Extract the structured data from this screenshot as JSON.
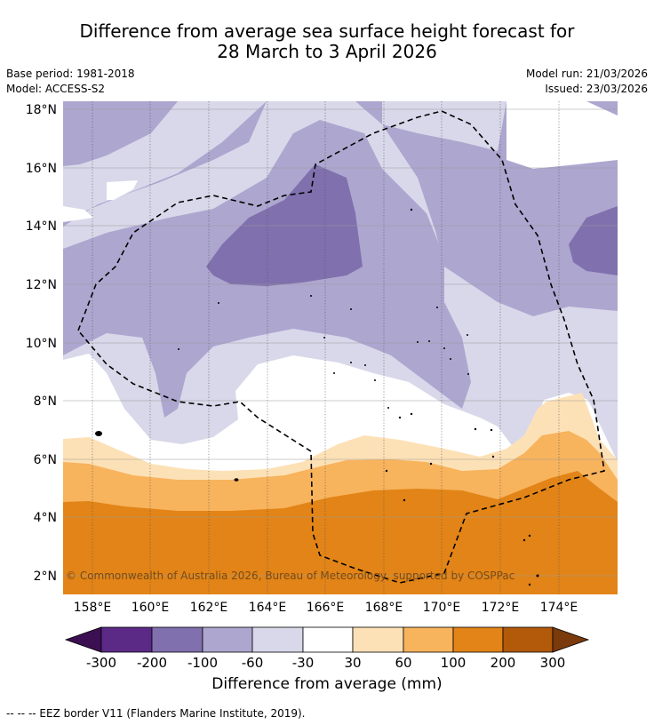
{
  "title": {
    "line1": "Difference from average sea surface height forecast for",
    "line2": "28 March to 3 April 2026"
  },
  "meta": {
    "base_period": "Base period: 1981-2018",
    "model": "Model: ACCESS-S2",
    "model_run": "Model run: 21/03/2026",
    "issued": "Issued: 23/03/2026"
  },
  "map": {
    "lat_ticks": [
      "18°N",
      "16°N",
      "14°N",
      "12°N",
      "10°N",
      "8°N",
      "6°N",
      "4°N",
      "2°N"
    ],
    "lon_ticks": [
      "158°E",
      "160°E",
      "162°E",
      "164°E",
      "166°E",
      "168°E",
      "170°E",
      "172°E",
      "174°E"
    ],
    "copyright": "© Commonwealth of Australia 2026, Bureau of Meteorology, supported by COSPPac"
  },
  "colorbar": {
    "title": "Difference from average (mm)",
    "labels": [
      "-300",
      "-200",
      "-100",
      "-60",
      "-30",
      "30",
      "60",
      "100",
      "200",
      "300"
    ],
    "colors": [
      "#3c0f52",
      "#5b2a86",
      "#8070ad",
      "#ada6cf",
      "#d8d8ea",
      "#ffffff",
      "#fde1b6",
      "#f8b35d",
      "#e28417",
      "#b2590a",
      "#7a3a0c"
    ]
  },
  "footer": {
    "legend": "--  --  -- EEZ border V11 (Flanders Marine Institute, 2019)."
  }
}
